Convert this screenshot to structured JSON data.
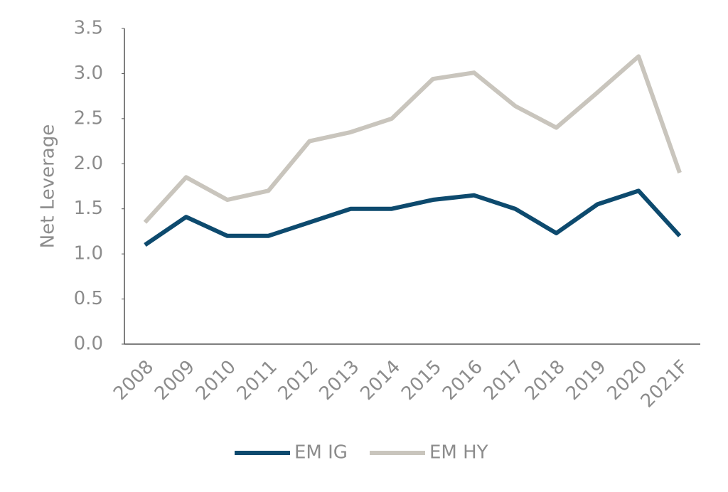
{
  "chart_data": {
    "type": "line",
    "y_label": "Net Leverage",
    "categories": [
      "2008",
      "2009",
      "2010",
      "2011",
      "2012",
      "2013",
      "2014",
      "2015",
      "2016",
      "2017",
      "2018",
      "2019",
      "2020",
      "2021F"
    ],
    "series": [
      {
        "name": "EM IG",
        "color": "#0d4a6e",
        "values": [
          1.1,
          1.41,
          1.2,
          1.2,
          1.35,
          1.5,
          1.5,
          1.6,
          1.65,
          1.5,
          1.23,
          1.55,
          1.7,
          1.2
        ]
      },
      {
        "name": "EM HY",
        "color": "#c9c5bd",
        "values": [
          1.35,
          1.85,
          1.6,
          1.7,
          2.25,
          2.35,
          2.5,
          2.94,
          3.01,
          2.64,
          2.4,
          2.79,
          3.19,
          1.9
        ]
      }
    ],
    "ylim": [
      0,
      3.5
    ],
    "yticks": [
      {
        "value": 0,
        "label": "0.0"
      },
      0.5,
      {
        "value": 1,
        "label": "1.0"
      },
      1.5,
      {
        "value": 2,
        "label": "2.0"
      },
      2.5,
      {
        "value": 3,
        "label": "3.0"
      },
      3.5
    ],
    "grid": false,
    "legend": "bottom"
  }
}
